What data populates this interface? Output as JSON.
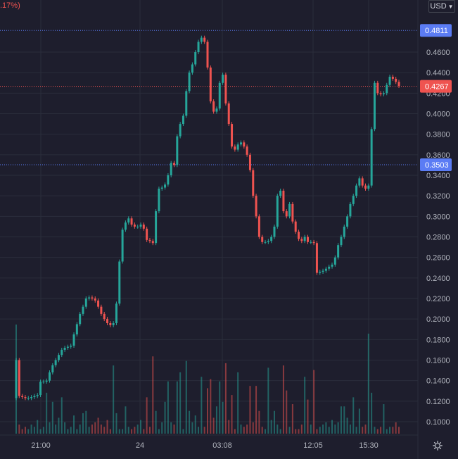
{
  "header": {
    "change_label": ".17%)",
    "currency_label": "USD"
  },
  "colors": {
    "background": "#1e1e2d",
    "grid": "#2a2d3b",
    "up": "#26a69a",
    "down": "#ef5350",
    "marker": "#5b7cf4",
    "last_price": "#ef5350"
  },
  "icons": {
    "settings": "gear-icon",
    "currency_dropdown": "chevron-down-icon"
  },
  "chart_data": {
    "type": "candlestick",
    "y_ticks": [
      "0.1000",
      "0.1200",
      "0.1400",
      "0.1600",
      "0.1800",
      "0.2000",
      "0.2200",
      "0.2400",
      "0.2600",
      "0.2800",
      "0.3000",
      "0.3200",
      "0.3400",
      "0.3600",
      "0.3800",
      "0.4000",
      "0.4200",
      "0.4400",
      "0.4600"
    ],
    "x_ticks": [
      "21:00",
      "24",
      "03:08",
      "12:05",
      "15:30"
    ],
    "ylim": [
      0.089,
      0.5
    ],
    "price_markers": [
      {
        "label": "0.4811",
        "value": 0.4811,
        "kind": "marker"
      },
      {
        "label": "0.4267",
        "value": 0.4267,
        "kind": "last"
      },
      {
        "label": "0.3503",
        "value": 0.3503,
        "kind": "marker"
      }
    ],
    "close_series": [
      0.16,
      0.125,
      0.124,
      0.123,
      0.123,
      0.124,
      0.125,
      0.126,
      0.139,
      0.139,
      0.14,
      0.148,
      0.155,
      0.16,
      0.165,
      0.17,
      0.172,
      0.173,
      0.174,
      0.185,
      0.195,
      0.205,
      0.212,
      0.22,
      0.221,
      0.22,
      0.218,
      0.212,
      0.205,
      0.2,
      0.196,
      0.194,
      0.196,
      0.215,
      0.256,
      0.287,
      0.294,
      0.298,
      0.292,
      0.29,
      0.29,
      0.292,
      0.288,
      0.277,
      0.276,
      0.274,
      0.305,
      0.327,
      0.328,
      0.331,
      0.34,
      0.352,
      0.35,
      0.378,
      0.39,
      0.398,
      0.422,
      0.44,
      0.448,
      0.46,
      0.47,
      0.474,
      0.47,
      0.445,
      0.412,
      0.402,
      0.405,
      0.43,
      0.438,
      0.41,
      0.39,
      0.368,
      0.365,
      0.37,
      0.372,
      0.368,
      0.36,
      0.345,
      0.32,
      0.3,
      0.28,
      0.275,
      0.275,
      0.276,
      0.28,
      0.29,
      0.32,
      0.325,
      0.305,
      0.3,
      0.312,
      0.295,
      0.285,
      0.278,
      0.276,
      0.28,
      0.275,
      0.275,
      0.274,
      0.245,
      0.246,
      0.247,
      0.249,
      0.251,
      0.253,
      0.26,
      0.272,
      0.28,
      0.29,
      0.3,
      0.312,
      0.32,
      0.33,
      0.337,
      0.33,
      0.327,
      0.33,
      0.385,
      0.43,
      0.42,
      0.419,
      0.42,
      0.428,
      0.436,
      0.434,
      0.431,
      0.427
    ],
    "volume_series": [
      48,
      4,
      2,
      3,
      2,
      4,
      3,
      6,
      2,
      3,
      18,
      5,
      14,
      4,
      7,
      16,
      5,
      2,
      3,
      8,
      2,
      4,
      9,
      10,
      3,
      4,
      5,
      7,
      4,
      3,
      6,
      2,
      30,
      9,
      2,
      2,
      12,
      3,
      2,
      3,
      4,
      6,
      2,
      16,
      3,
      34,
      10,
      2,
      5,
      14,
      23,
      5,
      4,
      23,
      27,
      2,
      32,
      10,
      5,
      8,
      3,
      25,
      3,
      20,
      24,
      7,
      12,
      23,
      14,
      31,
      6,
      17,
      2,
      27,
      4,
      3,
      4,
      21,
      5,
      21,
      10,
      3,
      2,
      29,
      6,
      10,
      4,
      2,
      30,
      19,
      3,
      13,
      2,
      2,
      4,
      25,
      15,
      4,
      28,
      2,
      3,
      4,
      5,
      3,
      6,
      4,
      5,
      12,
      12,
      7,
      4,
      16,
      3,
      11,
      3,
      4,
      44,
      18,
      3,
      2,
      3,
      13,
      2,
      3,
      3,
      5,
      3
    ]
  }
}
